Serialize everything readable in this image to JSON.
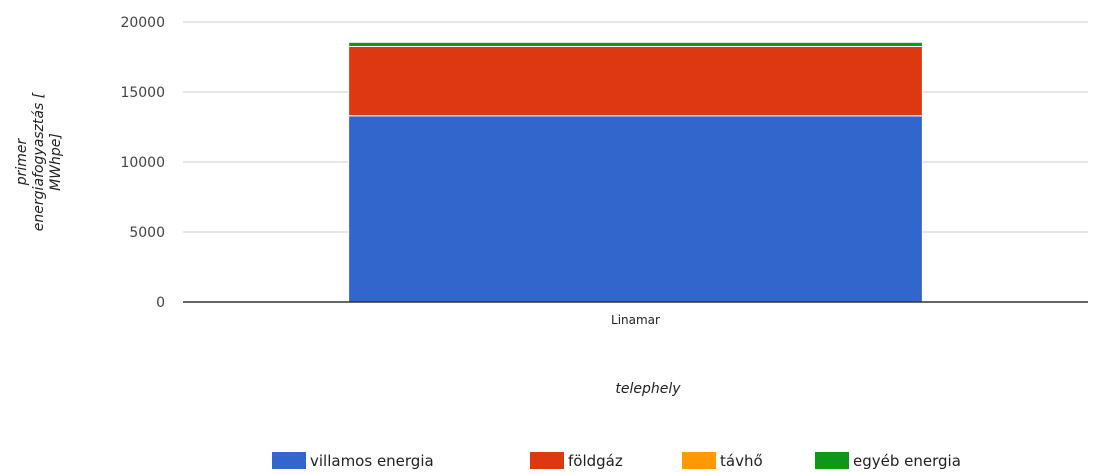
{
  "chart_data": {
    "type": "bar",
    "stacked": true,
    "title": "",
    "xlabel": "telephely",
    "ylabel_lines": [
      "primer",
      "energiafogyasztás [",
      "MWhpe]"
    ],
    "categories": [
      "Linamar"
    ],
    "series": [
      {
        "name": "villamos energia",
        "values": [
          13300
        ],
        "color": "#3366cc"
      },
      {
        "name": "földgáz",
        "values": [
          4950
        ],
        "color": "#dc3912"
      },
      {
        "name": "távhő",
        "values": [
          0
        ],
        "color": "#ff9900"
      },
      {
        "name": "egyéb energia",
        "values": [
          300
        ],
        "color": "#109618"
      }
    ],
    "ylim": [
      0,
      20000
    ],
    "yticks": [
      0,
      5000,
      10000,
      15000,
      20000
    ],
    "grid": true,
    "legend_position": "bottom"
  }
}
